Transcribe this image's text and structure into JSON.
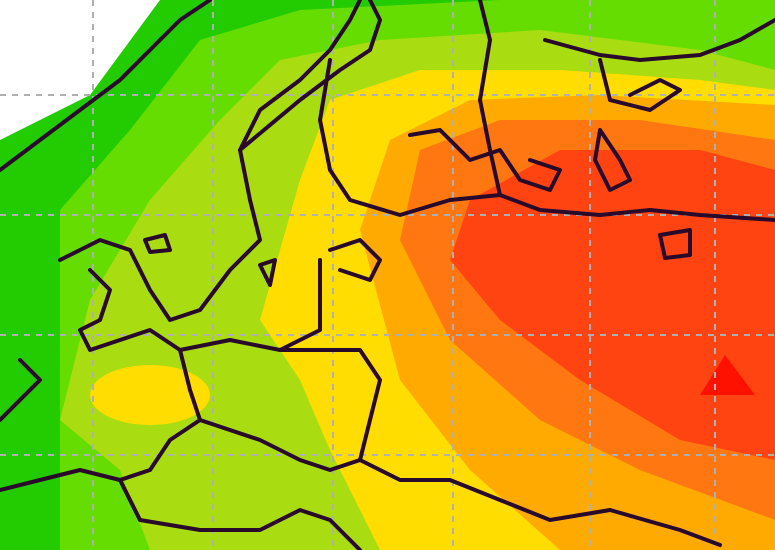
{
  "map": {
    "colors": {
      "background": "#ffffff",
      "level_1": "#22cc00",
      "level_2": "#66dd00",
      "level_3": "#aadd11",
      "level_4": "#ffdd00",
      "level_5": "#ffaa00",
      "level_6": "#ff7711",
      "level_7": "#ff4411",
      "level_8": "#ff1100",
      "border": "#2a0a2a",
      "grid": "#b0b0b0"
    }
  }
}
